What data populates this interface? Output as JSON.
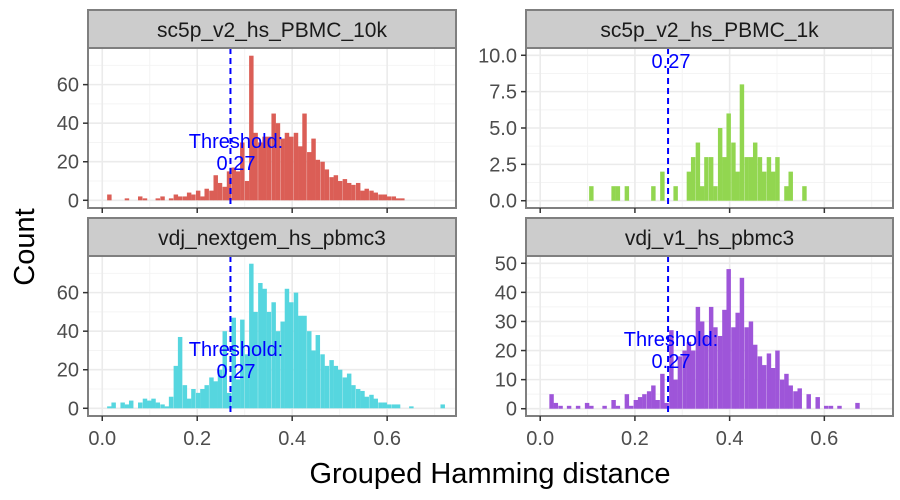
{
  "figure": {
    "xlabel": "Grouped Hamming distance",
    "ylabel": "Count",
    "threshold_color": "#0000ff",
    "strip_color": "#cccccc",
    "grid_color": "#ebebeb"
  },
  "chart_data": [
    {
      "type": "bar",
      "title": "sc5p_v2_hs_PBMC_10k",
      "color": "#db5e56",
      "xlim": [
        -0.03,
        0.745
      ],
      "ylim": [
        -4,
        79
      ],
      "xticks": [
        0.0,
        0.2,
        0.4,
        0.6
      ],
      "xtick_labels": [
        "0.0",
        "0.2",
        "0.4",
        "0.6"
      ],
      "yticks": [
        0,
        20,
        40,
        60
      ],
      "ytick_labels": [
        "0",
        "20",
        "40",
        "60"
      ],
      "threshold": 0.27,
      "threshold_label": [
        "Threshold:",
        "0.27"
      ],
      "bin_width": 0.0094,
      "x": [
        0.015,
        0.052,
        0.08,
        0.09,
        0.117,
        0.127,
        0.145,
        0.155,
        0.164,
        0.174,
        0.183,
        0.192,
        0.202,
        0.211,
        0.22,
        0.23,
        0.239,
        0.248,
        0.258,
        0.267,
        0.277,
        0.286,
        0.295,
        0.305,
        0.314,
        0.323,
        0.333,
        0.342,
        0.351,
        0.361,
        0.37,
        0.38,
        0.389,
        0.398,
        0.408,
        0.417,
        0.426,
        0.436,
        0.445,
        0.454,
        0.464,
        0.473,
        0.483,
        0.492,
        0.501,
        0.511,
        0.52,
        0.529,
        0.539,
        0.548,
        0.557,
        0.567,
        0.576,
        0.586,
        0.595,
        0.604,
        0.614,
        0.623,
        0.632
      ],
      "values": [
        3,
        1,
        2,
        1,
        1,
        2,
        1,
        3,
        2,
        2,
        4,
        3,
        5,
        2,
        6,
        5,
        13,
        9,
        7,
        15,
        17,
        15,
        30,
        10,
        75,
        35,
        30,
        33,
        33,
        45,
        40,
        32,
        35,
        33,
        35,
        28,
        45,
        25,
        32,
        21,
        20,
        16,
        12,
        13,
        10,
        11,
        9,
        8,
        9,
        5,
        6,
        5,
        4,
        3,
        3,
        2,
        2,
        1,
        1
      ]
    },
    {
      "type": "bar",
      "title": "sc5p_v2_hs_PBMC_1k",
      "color": "#92d650",
      "xlim": [
        -0.03,
        0.745
      ],
      "ylim": [
        -0.5,
        10.5
      ],
      "xticks": [
        0.0,
        0.2,
        0.4,
        0.6
      ],
      "xtick_labels": [
        "0.0",
        "0.2",
        "0.4",
        "0.6"
      ],
      "yticks": [
        0.0,
        2.5,
        5.0,
        7.5,
        10.0
      ],
      "ytick_labels": [
        "0.0",
        "2.5",
        "5.0",
        "7.5",
        "10.0"
      ],
      "threshold": 0.27,
      "threshold_label": [
        "0.27"
      ],
      "bin_width": 0.0094,
      "x": [
        0.108,
        0.155,
        0.164,
        0.183,
        0.239,
        0.258,
        0.286,
        0.314,
        0.323,
        0.333,
        0.342,
        0.351,
        0.361,
        0.37,
        0.38,
        0.389,
        0.398,
        0.408,
        0.417,
        0.426,
        0.436,
        0.445,
        0.454,
        0.464,
        0.473,
        0.483,
        0.492,
        0.501,
        0.52,
        0.529,
        0.558
      ],
      "values": [
        1,
        1,
        1,
        1,
        1,
        2,
        1,
        2,
        3,
        4,
        1,
        3,
        3,
        1,
        5,
        3,
        6,
        4,
        2,
        8,
        3,
        3,
        4,
        3,
        2,
        3,
        2,
        3,
        1,
        2,
        1
      ]
    },
    {
      "type": "bar",
      "title": "vdj_nextgem_hs_pbmc3",
      "color": "#56d6df",
      "xlim": [
        -0.03,
        0.745
      ],
      "ylim": [
        -4,
        79
      ],
      "xticks": [
        0.0,
        0.2,
        0.4,
        0.6
      ],
      "xtick_labels": [
        "0.0",
        "0.2",
        "0.4",
        "0.6"
      ],
      "yticks": [
        0,
        20,
        40,
        60
      ],
      "ytick_labels": [
        "0",
        "20",
        "40",
        "60"
      ],
      "threshold": 0.27,
      "threshold_label": [
        "Threshold:",
        "0.27"
      ],
      "bin_width": 0.0094,
      "x": [
        0.015,
        0.024,
        0.043,
        0.052,
        0.061,
        0.08,
        0.09,
        0.099,
        0.108,
        0.117,
        0.127,
        0.136,
        0.145,
        0.155,
        0.164,
        0.174,
        0.183,
        0.192,
        0.202,
        0.211,
        0.22,
        0.23,
        0.239,
        0.248,
        0.258,
        0.267,
        0.277,
        0.286,
        0.295,
        0.305,
        0.314,
        0.323,
        0.333,
        0.342,
        0.351,
        0.361,
        0.37,
        0.38,
        0.389,
        0.398,
        0.408,
        0.417,
        0.426,
        0.436,
        0.445,
        0.454,
        0.464,
        0.473,
        0.483,
        0.492,
        0.501,
        0.511,
        0.52,
        0.529,
        0.539,
        0.548,
        0.557,
        0.567,
        0.576,
        0.586,
        0.595,
        0.604,
        0.614,
        0.623,
        0.651,
        0.717
      ],
      "values": [
        1,
        3,
        3,
        2,
        4,
        3,
        5,
        4,
        5,
        3,
        2,
        1,
        6,
        22,
        37,
        12,
        5,
        10,
        8,
        10,
        12,
        16,
        14,
        20,
        40,
        8,
        47,
        15,
        46,
        28,
        75,
        50,
        65,
        62,
        50,
        55,
        40,
        45,
        62,
        55,
        60,
        48,
        48,
        40,
        30,
        38,
        28,
        22,
        25,
        22,
        20,
        16,
        18,
        12,
        10,
        9,
        6,
        7,
        5,
        3,
        3,
        2,
        2,
        2,
        1,
        2
      ]
    },
    {
      "type": "bar",
      "title": "vdj_v1_hs_pbmc3",
      "color": "#9e55d9",
      "xlim": [
        -0.03,
        0.745
      ],
      "ylim": [
        -2.5,
        52.5
      ],
      "xticks": [
        0.0,
        0.2,
        0.4,
        0.6
      ],
      "xtick_labels": [
        "0.0",
        "0.2",
        "0.4",
        "0.6"
      ],
      "yticks": [
        0,
        10,
        20,
        30,
        40,
        50
      ],
      "ytick_labels": [
        "0",
        "10",
        "20",
        "30",
        "40",
        "50"
      ],
      "threshold": 0.27,
      "threshold_label": [
        "Threshold:",
        "0.27"
      ],
      "bin_width": 0.0094,
      "x": [
        0.024,
        0.033,
        0.043,
        0.061,
        0.08,
        0.099,
        0.108,
        0.136,
        0.155,
        0.164,
        0.183,
        0.192,
        0.202,
        0.211,
        0.22,
        0.23,
        0.239,
        0.248,
        0.258,
        0.267,
        0.277,
        0.286,
        0.295,
        0.305,
        0.314,
        0.323,
        0.333,
        0.342,
        0.351,
        0.361,
        0.37,
        0.38,
        0.389,
        0.398,
        0.408,
        0.417,
        0.426,
        0.436,
        0.445,
        0.454,
        0.464,
        0.473,
        0.483,
        0.492,
        0.501,
        0.511,
        0.52,
        0.529,
        0.539,
        0.548,
        0.567,
        0.586,
        0.604,
        0.614,
        0.632,
        0.67
      ],
      "values": [
        5,
        2,
        1,
        1,
        1,
        2,
        1,
        1,
        3,
        1,
        5,
        1,
        3,
        4,
        5,
        6,
        8,
        3,
        12,
        2,
        27,
        10,
        18,
        20,
        23,
        20,
        35,
        30,
        25,
        35,
        28,
        25,
        34,
        48,
        28,
        33,
        45,
        28,
        30,
        22,
        18,
        15,
        19,
        14,
        20,
        10,
        12,
        8,
        6,
        7,
        5,
        4,
        1,
        1,
        1,
        2
      ]
    }
  ]
}
